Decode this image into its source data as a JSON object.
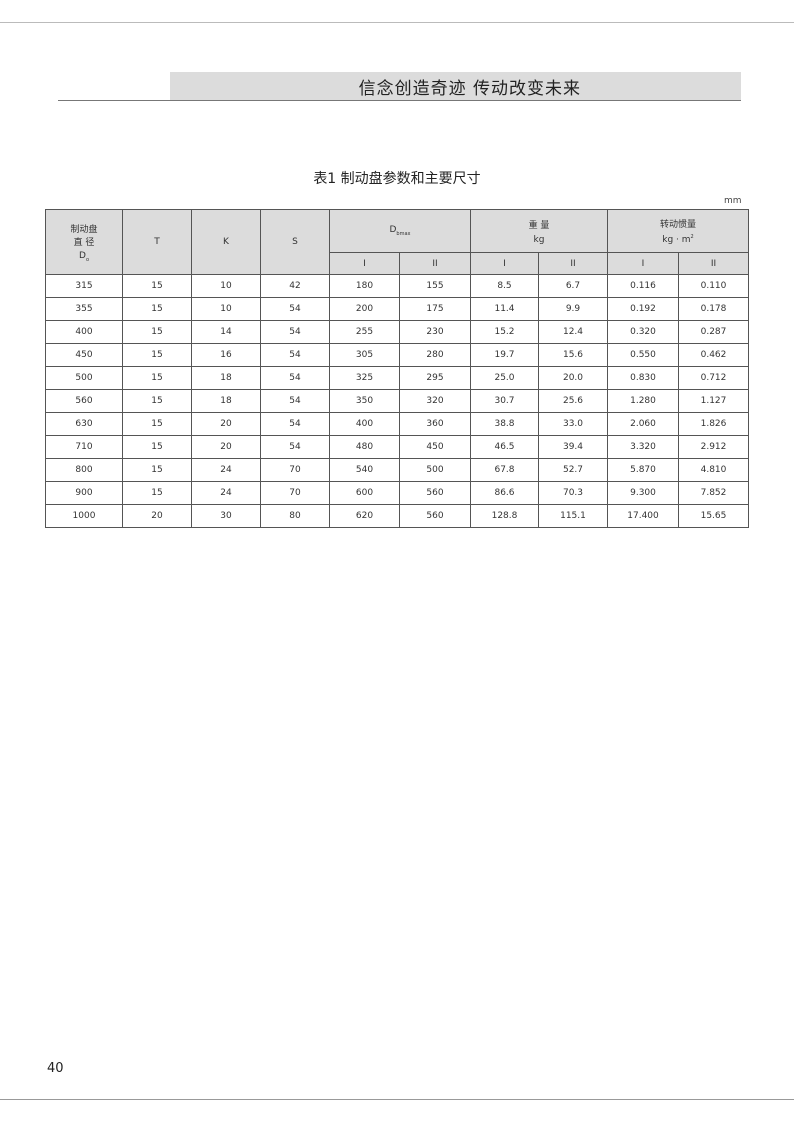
{
  "header": {
    "banner": "信念创造奇迹  传动改变未来"
  },
  "table": {
    "title": "表1  制动盘参数和主要尺寸",
    "unit": "mm",
    "headers": {
      "diameter_line1": "制动盘",
      "diameter_line2": "直 径",
      "diameter_symbol": "D",
      "diameter_sub": "o",
      "T": "T",
      "K": "K",
      "S": "S",
      "dmax": "D",
      "dmax_sub": "bmax",
      "weight": "重  量",
      "weight_unit": "kg",
      "inertia": "转动惯量",
      "inertia_unit": "kg · m",
      "inertia_sup": "2",
      "sub_I": "I",
      "sub_II": "II"
    },
    "rows": [
      [
        "315",
        "15",
        "10",
        "42",
        "180",
        "155",
        "8.5",
        "6.7",
        "0.116",
        "0.110"
      ],
      [
        "355",
        "15",
        "10",
        "54",
        "200",
        "175",
        "11.4",
        "9.9",
        "0.192",
        "0.178"
      ],
      [
        "400",
        "15",
        "14",
        "54",
        "255",
        "230",
        "15.2",
        "12.4",
        "0.320",
        "0.287"
      ],
      [
        "450",
        "15",
        "16",
        "54",
        "305",
        "280",
        "19.7",
        "15.6",
        "0.550",
        "0.462"
      ],
      [
        "500",
        "15",
        "18",
        "54",
        "325",
        "295",
        "25.0",
        "20.0",
        "0.830",
        "0.712"
      ],
      [
        "560",
        "15",
        "18",
        "54",
        "350",
        "320",
        "30.7",
        "25.6",
        "1.280",
        "1.127"
      ],
      [
        "630",
        "15",
        "20",
        "54",
        "400",
        "360",
        "38.8",
        "33.0",
        "2.060",
        "1.826"
      ],
      [
        "710",
        "15",
        "20",
        "54",
        "480",
        "450",
        "46.5",
        "39.4",
        "3.320",
        "2.912"
      ],
      [
        "800",
        "15",
        "24",
        "70",
        "540",
        "500",
        "67.8",
        "52.7",
        "5.870",
        "4.810"
      ],
      [
        "900",
        "15",
        "24",
        "70",
        "600",
        "560",
        "86.6",
        "70.3",
        "9.300",
        "7.852"
      ],
      [
        "1000",
        "20",
        "30",
        "80",
        "620",
        "560",
        "128.8",
        "115.1",
        "17.400",
        "15.65"
      ]
    ]
  },
  "footer": {
    "page_number": "40"
  }
}
